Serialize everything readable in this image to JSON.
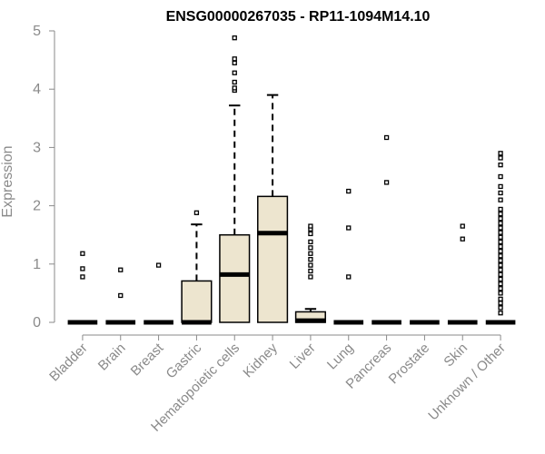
{
  "chart_data": {
    "type": "box",
    "title": "ENSG00000267035 - RP11-1094M14.10",
    "ylabel": "Expression",
    "xlabel": "",
    "ylim": [
      0,
      5
    ],
    "yticks": [
      0,
      1,
      2,
      3,
      4,
      5
    ],
    "box_fill": "#ede5cf",
    "stroke": "#000000",
    "axis_color": "#8a8a8a",
    "categories": [
      "Bladder",
      "Brain",
      "Breast",
      "Gastric",
      "Hematopoietic cells",
      "Kidney",
      "Liver",
      "Lung",
      "Pancreas",
      "Prostate",
      "Skin",
      "Unknown / Other"
    ],
    "boxes": [
      {
        "category": "Bladder",
        "q1": 0,
        "median": 0,
        "q3": 0,
        "whisker_low": 0,
        "whisker_high": 0,
        "outliers": [
          0.78,
          0.92,
          1.18
        ]
      },
      {
        "category": "Brain",
        "q1": 0,
        "median": 0,
        "q3": 0,
        "whisker_low": 0,
        "whisker_high": 0,
        "outliers": [
          0.46,
          0.9
        ]
      },
      {
        "category": "Breast",
        "q1": 0,
        "median": 0,
        "q3": 0,
        "whisker_low": 0,
        "whisker_high": 0,
        "outliers": [
          0.98
        ]
      },
      {
        "category": "Gastric",
        "q1": 0,
        "median": 0,
        "q3": 0.71,
        "whisker_low": 0,
        "whisker_high": 1.68,
        "outliers": [
          1.88
        ]
      },
      {
        "category": "Hematopoietic cells",
        "q1": 0,
        "median": 0.82,
        "q3": 1.5,
        "whisker_low": 0,
        "whisker_high": 3.72,
        "outliers": [
          3.98,
          4.02,
          4.12,
          4.28,
          4.45,
          4.52,
          4.88
        ]
      },
      {
        "category": "Kidney",
        "q1": 0,
        "median": 1.53,
        "q3": 2.16,
        "whisker_low": 0,
        "whisker_high": 3.9,
        "outliers": []
      },
      {
        "category": "Liver",
        "q1": 0,
        "median": 0.03,
        "q3": 0.18,
        "whisker_low": 0,
        "whisker_high": 0.23,
        "outliers": [
          0.78,
          0.88,
          0.98,
          1.08,
          1.18,
          1.28,
          1.38,
          1.52,
          1.6,
          1.65
        ]
      },
      {
        "category": "Lung",
        "q1": 0,
        "median": 0,
        "q3": 0,
        "whisker_low": 0,
        "whisker_high": 0,
        "outliers": [
          0.78,
          1.62,
          2.25
        ]
      },
      {
        "category": "Pancreas",
        "q1": 0,
        "median": 0,
        "q3": 0,
        "whisker_low": 0,
        "whisker_high": 0,
        "outliers": [
          2.4,
          3.17
        ]
      },
      {
        "category": "Prostate",
        "q1": 0,
        "median": 0,
        "q3": 0,
        "whisker_low": 0,
        "whisker_high": 0,
        "outliers": []
      },
      {
        "category": "Skin",
        "q1": 0,
        "median": 0,
        "q3": 0,
        "whisker_low": 0,
        "whisker_high": 0,
        "outliers": [
          1.43,
          1.65
        ]
      },
      {
        "category": "Unknown / Other",
        "q1": 0,
        "median": 0,
        "q3": 0,
        "whisker_low": 0,
        "whisker_high": 0,
        "outliers": [
          0.16,
          0.25,
          0.33,
          0.4,
          0.5,
          0.58,
          0.66,
          0.74,
          0.82,
          0.9,
          0.98,
          1.06,
          1.14,
          1.22,
          1.3,
          1.38,
          1.46,
          1.54,
          1.62,
          1.7,
          1.78,
          1.86,
          1.94,
          2.1,
          2.22,
          2.33,
          2.5,
          2.7,
          2.82,
          2.9
        ]
      }
    ]
  }
}
